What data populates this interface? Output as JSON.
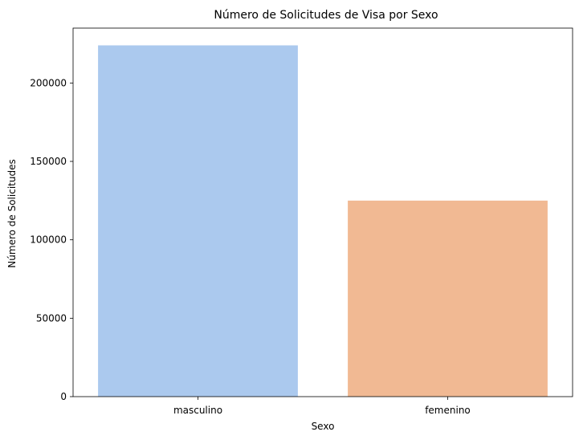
{
  "chart_data": {
    "type": "bar",
    "title": "Número de Solicitudes de Visa por Sexo",
    "xlabel": "Sexo",
    "ylabel": "Número de Solicitudes",
    "categories": [
      "masculino",
      "femenino"
    ],
    "values": [
      224000,
      125000
    ],
    "colors": [
      "#abc9ee",
      "#f1b993"
    ],
    "ylim": [
      0,
      235000
    ],
    "yticks": [
      0,
      50000,
      100000,
      150000,
      200000
    ],
    "ytick_labels": [
      "0",
      "50000",
      "100000",
      "150000",
      "200000"
    ],
    "grid": false,
    "legend": "none"
  }
}
